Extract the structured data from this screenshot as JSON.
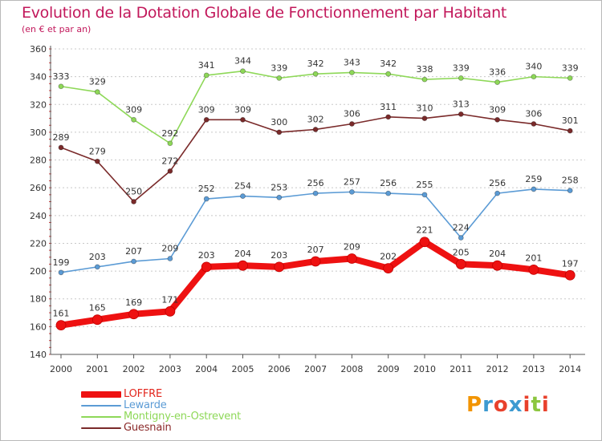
{
  "chart_data": {
    "type": "line",
    "title": "Evolution de la Dotation Globale de Fonctionnement par Habitant",
    "subtitle": "(en € et par an)",
    "xlabel": "",
    "ylabel": "",
    "ylim": [
      140,
      360
    ],
    "yticks": [
      140,
      160,
      180,
      200,
      220,
      240,
      260,
      280,
      300,
      320,
      340,
      360
    ],
    "grid": "horizontal-dashed",
    "categories": [
      "2000",
      "2001",
      "2002",
      "2003",
      "2004",
      "2005",
      "2006",
      "2007",
      "2008",
      "2009",
      "2010",
      "2011",
      "2012",
      "2013",
      "2014"
    ],
    "series": [
      {
        "name": "LOFFRE",
        "color": "#ee1111",
        "emphasis": true,
        "values": [
          161,
          165,
          169,
          171,
          203,
          204,
          203,
          207,
          209,
          202,
          221,
          205,
          204,
          201,
          197
        ]
      },
      {
        "name": "Lewarde",
        "color": "#5b9bd5",
        "values": [
          199,
          203,
          207,
          209,
          252,
          254,
          253,
          256,
          257,
          256,
          255,
          224,
          256,
          259,
          258
        ]
      },
      {
        "name": "Montigny-en-Ostrevent",
        "color": "#8ed858",
        "values": [
          333,
          329,
          309,
          292,
          341,
          344,
          339,
          342,
          343,
          342,
          338,
          339,
          336,
          340,
          339
        ]
      },
      {
        "name": "Guesnain",
        "color": "#7a2a2a",
        "values": [
          289,
          279,
          250,
          272,
          309,
          309,
          300,
          302,
          306,
          311,
          310,
          313,
          309,
          306,
          301
        ]
      }
    ]
  },
  "logo": {
    "text": "Proxiti",
    "letter_colors": [
      "#f29400",
      "#3d9ad1",
      "#e8412c",
      "#3d9ad1",
      "#e8412c",
      "#8cc63f",
      "#e8412c"
    ]
  }
}
